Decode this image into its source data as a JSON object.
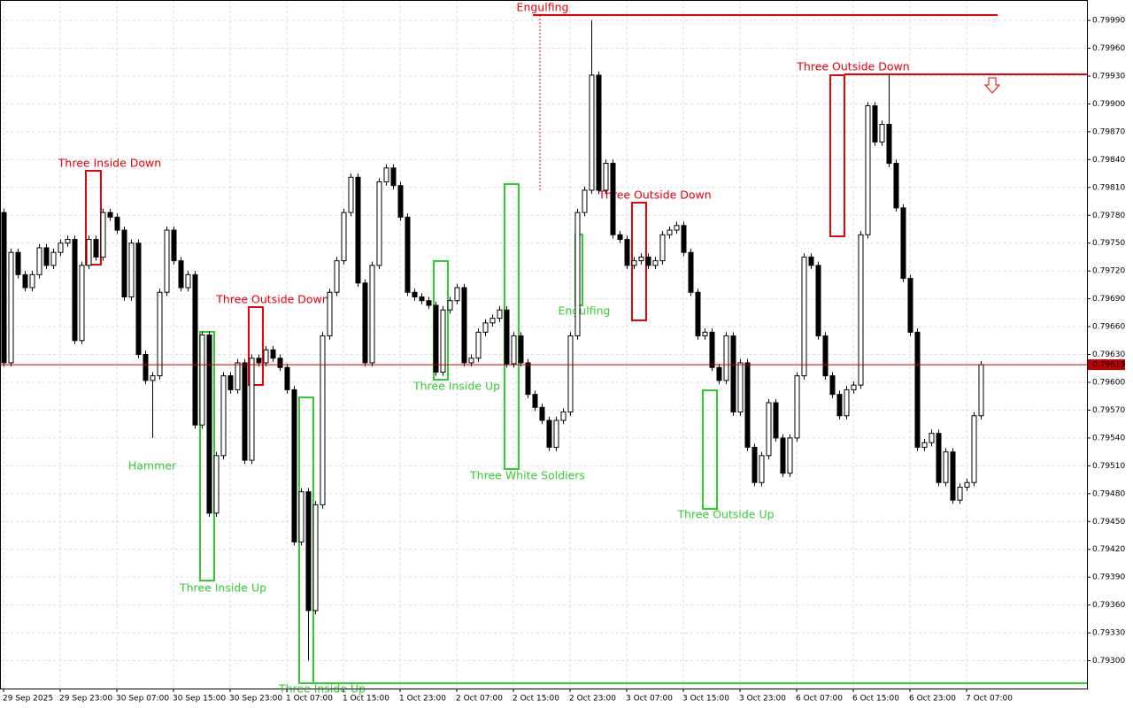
{
  "chart_data": {
    "type": "candlestick",
    "categories": [
      "29 Sep 2025",
      null,
      null,
      null,
      null,
      null,
      null,
      null,
      "29 Sep 23:00",
      null,
      null,
      null,
      null,
      null,
      null,
      null,
      "30 Sep 07:00",
      null,
      null,
      null,
      null,
      null,
      null,
      null,
      "30 Sep 15:00",
      null,
      null,
      null,
      null,
      null,
      null,
      null,
      "30 Sep 23:00",
      null,
      null,
      null,
      null,
      null,
      null,
      null,
      "1 Oct 07:00",
      null,
      null,
      null,
      null,
      null,
      null,
      null,
      "1 Oct 15:00",
      null,
      null,
      null,
      null,
      null,
      null,
      null,
      "1 Oct 23:00",
      null,
      null,
      null,
      null,
      null,
      null,
      null,
      "2 Oct 07:00",
      null,
      null,
      null,
      null,
      null,
      null,
      null,
      "2 Oct 15:00",
      null,
      null,
      null,
      null,
      null,
      null,
      null,
      "2 Oct 23:00",
      null,
      null,
      null,
      null,
      null,
      null,
      null,
      "3 Oct 07:00",
      null,
      null,
      null,
      null,
      null,
      null,
      null,
      "3 Oct 15:00",
      null,
      null,
      null,
      null,
      null,
      null,
      null,
      "3 Oct 23:00",
      null,
      null,
      null,
      null,
      null,
      null,
      null,
      "6 Oct 07:00",
      null,
      null,
      null,
      null,
      null,
      null,
      null,
      "6 Oct 15:00",
      null,
      null,
      null,
      null,
      null,
      null,
      null,
      "6 Oct 23:00",
      null,
      null,
      null,
      null,
      null,
      null,
      null,
      "7 Oct 07:00",
      null,
      null
    ],
    "open": [
      0.79783,
      0.79621,
      0.7974,
      0.79716,
      0.79702,
      0.79716,
      0.79745,
      0.79726,
      0.7974,
      0.7975,
      0.79754,
      0.79645,
      0.79726,
      0.79754,
      0.79735,
      0.79783,
      0.79778,
      0.79764,
      0.79692,
      0.7975,
      0.7963,
      0.79602,
      0.79607,
      0.79697,
      0.79764,
      0.79731,
      0.79702,
      0.79716,
      0.79554,
      0.79651,
      0.79459,
      0.79521,
      0.79607,
      0.79592,
      0.79621,
      0.79516,
      0.79626,
      0.79621,
      0.79635,
      0.79626,
      0.79616,
      0.79592,
      0.79428,
      0.79482,
      0.79354,
      0.79468,
      0.7965,
      0.79697,
      0.79731,
      0.79783,
      0.79821,
      0.79707,
      0.79621,
      0.79726,
      0.79816,
      0.79831,
      0.79812,
      0.79778,
      0.79697,
      0.79692,
      0.79688,
      0.79683,
      0.79611,
      0.79678,
      0.79688,
      0.79702,
      0.79621,
      0.79626,
      0.79654,
      0.79664,
      0.79669,
      0.79678,
      0.7962,
      0.7965,
      0.79621,
      0.79587,
      0.79573,
      0.79559,
      0.7953,
      0.79559,
      0.79568,
      0.7965,
      0.79783,
      0.79807,
      0.79931,
      0.79807,
      0.79836,
      0.79759,
      0.79754,
      0.79726,
      0.79731,
      0.79735,
      0.79726,
      0.79731,
      0.79759,
      0.79764,
      0.79769,
      0.7974,
      0.79697,
      0.7965,
      0.79654,
      0.79616,
      0.79602,
      0.7965,
      0.79568,
      0.79621,
      0.7953,
      0.79492,
      0.79521,
      0.79578,
      0.7954,
      0.79502,
      0.7954,
      0.79607,
      0.79735,
      0.79726,
      0.7965,
      0.79607,
      0.79587,
      0.79564,
      0.79592,
      0.79597,
      0.79759,
      0.79898,
      0.79859,
      0.79878,
      0.79836,
      0.79788,
      0.79712,
      0.79654,
      0.7953,
      0.79535,
      0.79545,
      0.79492,
      0.79525,
      0.79473,
      0.79487,
      0.79492,
      0.79564
    ],
    "high": [
      0.79787,
      0.79744,
      0.79744,
      0.7972,
      0.7972,
      0.79749,
      0.79749,
      0.79744,
      0.79754,
      0.79758,
      0.79758,
      0.7973,
      0.79758,
      0.79758,
      0.79787,
      0.79787,
      0.79782,
      0.79768,
      0.79754,
      0.79754,
      0.79634,
      0.79611,
      0.79701,
      0.79768,
      0.79768,
      0.79735,
      0.7972,
      0.7972,
      0.79655,
      0.79655,
      0.79525,
      0.79611,
      0.79611,
      0.79625,
      0.79625,
      0.7963,
      0.7963,
      0.79639,
      0.79639,
      0.7963,
      0.7962,
      0.79596,
      0.79486,
      0.79486,
      0.79472,
      0.79654,
      0.79701,
      0.79735,
      0.79787,
      0.79825,
      0.79825,
      0.79711,
      0.7973,
      0.7982,
      0.79835,
      0.79835,
      0.79816,
      0.79782,
      0.79701,
      0.79696,
      0.79692,
      0.79687,
      0.79682,
      0.79692,
      0.79706,
      0.79706,
      0.7963,
      0.79658,
      0.79668,
      0.79673,
      0.79682,
      0.79682,
      0.79654,
      0.79654,
      0.79625,
      0.79591,
      0.79577,
      0.79563,
      0.79563,
      0.79572,
      0.79654,
      0.79787,
      0.79811,
      0.7999,
      0.79935,
      0.7984,
      0.7984,
      0.79763,
      0.79758,
      0.79735,
      0.79739,
      0.79739,
      0.79735,
      0.79763,
      0.79768,
      0.79773,
      0.79773,
      0.79744,
      0.79701,
      0.79658,
      0.79658,
      0.7962,
      0.79654,
      0.79654,
      0.79625,
      0.79625,
      0.79534,
      0.79525,
      0.79582,
      0.79582,
      0.79544,
      0.79544,
      0.79611,
      0.79739,
      0.79739,
      0.7973,
      0.79654,
      0.79611,
      0.79591,
      0.79596,
      0.79601,
      0.79763,
      0.79902,
      0.79902,
      0.79882,
      0.79933,
      0.7984,
      0.79792,
      0.79716,
      0.79658,
      0.79539,
      0.79549,
      0.79549,
      0.79529,
      0.79529,
      0.79491,
      0.79496,
      0.79568,
      0.79623
    ],
    "low": [
      0.79617,
      0.79617,
      0.79712,
      0.79698,
      0.79698,
      0.79712,
      0.79722,
      0.79722,
      0.79736,
      0.79746,
      0.79641,
      0.79641,
      0.79722,
      0.79731,
      0.79731,
      0.79774,
      0.7976,
      0.79688,
      0.79688,
      0.79626,
      0.79598,
      0.7954,
      0.79603,
      0.79693,
      0.79727,
      0.79698,
      0.79698,
      0.7955,
      0.7955,
      0.79455,
      0.79455,
      0.79517,
      0.79588,
      0.79588,
      0.79512,
      0.79512,
      0.79617,
      0.79617,
      0.79622,
      0.79612,
      0.79588,
      0.79424,
      0.79424,
      0.793,
      0.7935,
      0.79464,
      0.79646,
      0.79693,
      0.79727,
      0.79779,
      0.79703,
      0.79617,
      0.79617,
      0.79722,
      0.79812,
      0.79808,
      0.79774,
      0.79693,
      0.79688,
      0.79684,
      0.79679,
      0.79607,
      0.79607,
      0.79674,
      0.79684,
      0.79617,
      0.79617,
      0.79622,
      0.7965,
      0.7966,
      0.79665,
      0.79616,
      0.79616,
      0.79617,
      0.79583,
      0.79569,
      0.79555,
      0.79526,
      0.79526,
      0.79555,
      0.79564,
      0.79646,
      0.79779,
      0.79803,
      0.79803,
      0.79803,
      0.79755,
      0.7975,
      0.79722,
      0.79722,
      0.79727,
      0.79722,
      0.79722,
      0.79727,
      0.79755,
      0.7976,
      0.79736,
      0.79693,
      0.79646,
      0.79646,
      0.79612,
      0.79598,
      0.79598,
      0.79564,
      0.79564,
      0.79526,
      0.79488,
      0.79488,
      0.79517,
      0.79536,
      0.79498,
      0.79498,
      0.79536,
      0.79603,
      0.79722,
      0.79646,
      0.79603,
      0.79583,
      0.7956,
      0.7956,
      0.79588,
      0.79593,
      0.79755,
      0.79855,
      0.79855,
      0.79832,
      0.79784,
      0.79708,
      0.7965,
      0.79526,
      0.79526,
      0.79531,
      0.79488,
      0.79488,
      0.79469,
      0.79469,
      0.79483,
      0.79488,
      0.7956
    ],
    "close": [
      0.79621,
      0.7974,
      0.79716,
      0.79702,
      0.79716,
      0.79745,
      0.79726,
      0.7974,
      0.7975,
      0.79754,
      0.79645,
      0.79726,
      0.79754,
      0.79735,
      0.79783,
      0.79778,
      0.79764,
      0.79692,
      0.7975,
      0.7963,
      0.79602,
      0.79607,
      0.79697,
      0.79764,
      0.79731,
      0.79702,
      0.79716,
      0.79554,
      0.79651,
      0.79459,
      0.79521,
      0.79607,
      0.79592,
      0.79621,
      0.79516,
      0.79626,
      0.79621,
      0.79635,
      0.79626,
      0.79616,
      0.79592,
      0.79428,
      0.79482,
      0.79354,
      0.79468,
      0.7965,
      0.79697,
      0.79731,
      0.79783,
      0.79821,
      0.79707,
      0.79621,
      0.79726,
      0.79816,
      0.79831,
      0.79812,
      0.79778,
      0.79697,
      0.79692,
      0.79688,
      0.79683,
      0.79611,
      0.79678,
      0.79688,
      0.79702,
      0.79621,
      0.79626,
      0.79654,
      0.79664,
      0.79669,
      0.79678,
      0.7962,
      0.7965,
      0.79621,
      0.79587,
      0.79573,
      0.79559,
      0.7953,
      0.79559,
      0.79568,
      0.7965,
      0.79783,
      0.79807,
      0.79931,
      0.79807,
      0.79836,
      0.79759,
      0.79754,
      0.79726,
      0.79731,
      0.79735,
      0.79726,
      0.79731,
      0.79759,
      0.79764,
      0.79769,
      0.7974,
      0.79697,
      0.7965,
      0.79654,
      0.79616,
      0.79602,
      0.7965,
      0.79568,
      0.79621,
      0.7953,
      0.79492,
      0.79521,
      0.79578,
      0.7954,
      0.79502,
      0.7954,
      0.79607,
      0.79735,
      0.79726,
      0.7965,
      0.79607,
      0.79587,
      0.79564,
      0.79592,
      0.79597,
      0.79759,
      0.79898,
      0.79859,
      0.79878,
      0.79836,
      0.79788,
      0.79712,
      0.79654,
      0.7953,
      0.79535,
      0.79545,
      0.79492,
      0.79525,
      0.79473,
      0.79487,
      0.79492,
      0.79564,
      0.79619
    ],
    "ylim": [
      0.7927,
      0.80012
    ],
    "yticks": [
      {
        "value": 0.7999,
        "label": "0.79990"
      },
      {
        "value": 0.7996,
        "label": "0.79960"
      },
      {
        "value": 0.7993,
        "label": "0.79930"
      },
      {
        "value": 0.799,
        "label": "0.79900"
      },
      {
        "value": 0.7987,
        "label": "0.79870"
      },
      {
        "value": 0.7984,
        "label": "0.79840"
      },
      {
        "value": 0.7981,
        "label": "0.79810"
      },
      {
        "value": 0.7978,
        "label": "0.79780"
      },
      {
        "value": 0.7975,
        "label": "0.79750"
      },
      {
        "value": 0.7972,
        "label": "0.79720"
      },
      {
        "value": 0.7969,
        "label": "0.79690"
      },
      {
        "value": 0.7966,
        "label": "0.79660"
      },
      {
        "value": 0.7963,
        "label": "0.79630"
      },
      {
        "value": 0.796,
        "label": "0.79600"
      },
      {
        "value": 0.7957,
        "label": "0.79570"
      },
      {
        "value": 0.7954,
        "label": "0.79540"
      },
      {
        "value": 0.7951,
        "label": "0.79510"
      },
      {
        "value": 0.7948,
        "label": "0.79480"
      },
      {
        "value": 0.7945,
        "label": "0.79450"
      },
      {
        "value": 0.7942,
        "label": "0.79420"
      },
      {
        "value": 0.7939,
        "label": "0.79390"
      },
      {
        "value": 0.7936,
        "label": "0.79360"
      },
      {
        "value": 0.7933,
        "label": "0.79330"
      },
      {
        "value": 0.793,
        "label": "0.79300"
      }
    ],
    "grid": true,
    "up_color": "#ffffff",
    "down_color": "#000000",
    "last_price": 0.79619,
    "last_price_color": "#c00000",
    "annotations": [
      {
        "text": "Three Inside Down",
        "color": "#e8000b"
      },
      {
        "text": "Hammer",
        "color": "#32cd32"
      },
      {
        "text": "Three Outside Down",
        "color": "#e8000b"
      },
      {
        "text": "Three Inside Up",
        "color": "#32cd32"
      },
      {
        "text": "Three Inside Up",
        "color": "#32cd32"
      },
      {
        "text": "Engulfing",
        "color": "#e8000b"
      },
      {
        "text": "Three Inside Up",
        "color": "#32cd32"
      },
      {
        "text": "Three White Soldiers",
        "color": "#32cd32"
      },
      {
        "text": "Engulfing",
        "color": "#32cd32"
      },
      {
        "text": "Three Outside Down",
        "color": "#e8000b"
      },
      {
        "text": "Three Outside Up",
        "color": "#32cd32"
      },
      {
        "text": "Three Outside Down",
        "color": "#e8000b"
      }
    ]
  }
}
